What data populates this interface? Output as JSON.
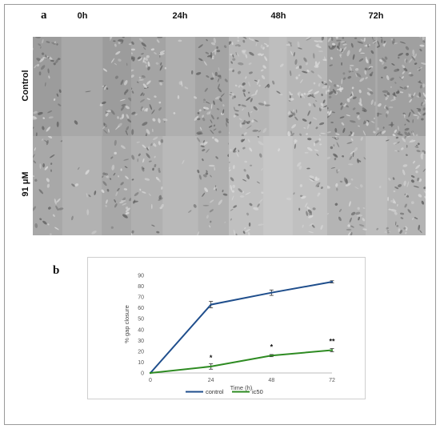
{
  "figure": {
    "panel_a_label": "a",
    "panel_b_label": "b",
    "time_columns": [
      "0h",
      "24h",
      "48h",
      "72h"
    ],
    "conditions": [
      "Control",
      "91 μM"
    ],
    "micrographs": [
      {
        "condition": "Control",
        "time": "0h",
        "gap_width": 0.42,
        "density": 0.55,
        "tone": "#9c9c9c"
      },
      {
        "condition": "Control",
        "time": "24h",
        "gap_width": 0.3,
        "density": 0.75,
        "tone": "#a4a4a4"
      },
      {
        "condition": "Control",
        "time": "48h",
        "gap_width": 0.18,
        "density": 0.85,
        "tone": "#b6b6b6"
      },
      {
        "condition": "Control",
        "time": "72h",
        "gap_width": 0.02,
        "density": 1.0,
        "tone": "#a0a0a0"
      },
      {
        "condition": "91 μM",
        "time": "0h",
        "gap_width": 0.4,
        "density": 0.45,
        "tone": "#a8a8a8"
      },
      {
        "condition": "91 μM",
        "time": "24h",
        "gap_width": 0.36,
        "density": 0.5,
        "tone": "#b0b0b0"
      },
      {
        "condition": "91 μM",
        "time": "48h",
        "gap_width": 0.3,
        "density": 0.55,
        "tone": "#c0c0c0"
      },
      {
        "condition": "91 μM",
        "time": "72h",
        "gap_width": 0.22,
        "density": 0.65,
        "tone": "#b4b4b4"
      }
    ]
  },
  "chart_data": {
    "type": "line",
    "xlabel": "Time (h)",
    "ylabel": "% gap closure",
    "x": [
      0,
      24,
      48,
      72
    ],
    "ylim": [
      0,
      90
    ],
    "yticks": [
      0,
      10,
      20,
      30,
      40,
      50,
      60,
      70,
      80,
      90
    ],
    "grid": false,
    "legend_position": "bottom",
    "series": [
      {
        "name": "control",
        "color": "#1f4e8c",
        "values": [
          0,
          63,
          74,
          84
        ],
        "errors": [
          0,
          3,
          2.5,
          1
        ]
      },
      {
        "name": "ic50",
        "color": "#2e8b22",
        "values": [
          0,
          6,
          16,
          21
        ],
        "errors": [
          0,
          2.5,
          1,
          1.5
        ]
      }
    ],
    "annotations": [
      {
        "x": 24,
        "y": 6,
        "text": "*"
      },
      {
        "x": 48,
        "y": 16,
        "text": "*"
      },
      {
        "x": 72,
        "y": 21,
        "text": "**"
      }
    ]
  }
}
